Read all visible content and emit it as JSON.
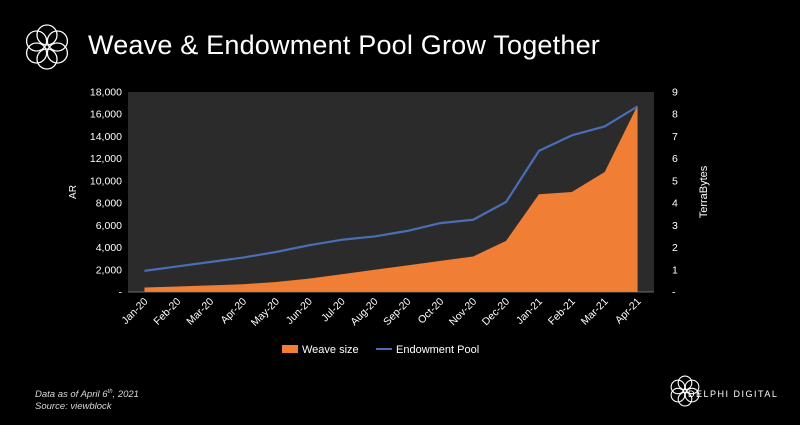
{
  "header": {
    "title": "Weave & Endowment Pool Grow Together",
    "logo_icon": "delphi-flower-logo-icon"
  },
  "footnote": {
    "line1_prefix": "Data as of April 6",
    "line1_sup": "th",
    "line1_suffix": ", 2021",
    "line2": "Source: viewblock"
  },
  "footer": {
    "brand": "DELPHI DIGITAL",
    "logo_icon": "delphi-flower-logo-icon"
  },
  "chart_data": {
    "type": "area",
    "title": "Weave & Endowment Pool Grow Together",
    "categories": [
      "Jan-20",
      "Feb-20",
      "Mar-20",
      "Apr-20",
      "May-20",
      "Jun-20",
      "Jul-20",
      "Aug-20",
      "Sep-20",
      "Oct-20",
      "Nov-20",
      "Dec-20",
      "Jan-21",
      "Feb-21",
      "Mar-21",
      "Apr-21"
    ],
    "series": [
      {
        "name": "Weave size",
        "type": "area",
        "axis": "right",
        "color": "#F07E34",
        "values": [
          0.2,
          0.25,
          0.3,
          0.35,
          0.45,
          0.6,
          0.8,
          1.0,
          1.2,
          1.4,
          1.6,
          2.3,
          4.4,
          4.5,
          5.4,
          8.4
        ]
      },
      {
        "name": "Endowment Pool",
        "type": "line",
        "axis": "left",
        "color": "#4A6EB5",
        "values": [
          1900,
          2300,
          2700,
          3100,
          3600,
          4200,
          4700,
          5000,
          5500,
          6200,
          6500,
          8100,
          12700,
          14100,
          14900,
          16700
        ]
      }
    ],
    "ylabel": "AR",
    "y2label": "TerraBytes",
    "ylim": [
      0,
      18000
    ],
    "y2lim": [
      0,
      9
    ],
    "yticks": [
      "-",
      "2,000",
      "4,000",
      "6,000",
      "8,000",
      "10,000",
      "12,000",
      "14,000",
      "16,000",
      "18,000"
    ],
    "y2ticks": [
      "-",
      "1",
      "2",
      "3",
      "4",
      "5",
      "6",
      "7",
      "8",
      "9"
    ],
    "legend": [
      "Weave size",
      "Endowment Pool"
    ],
    "legend_position": "bottom",
    "plot_background": "#2b2b2b",
    "grid": false
  }
}
